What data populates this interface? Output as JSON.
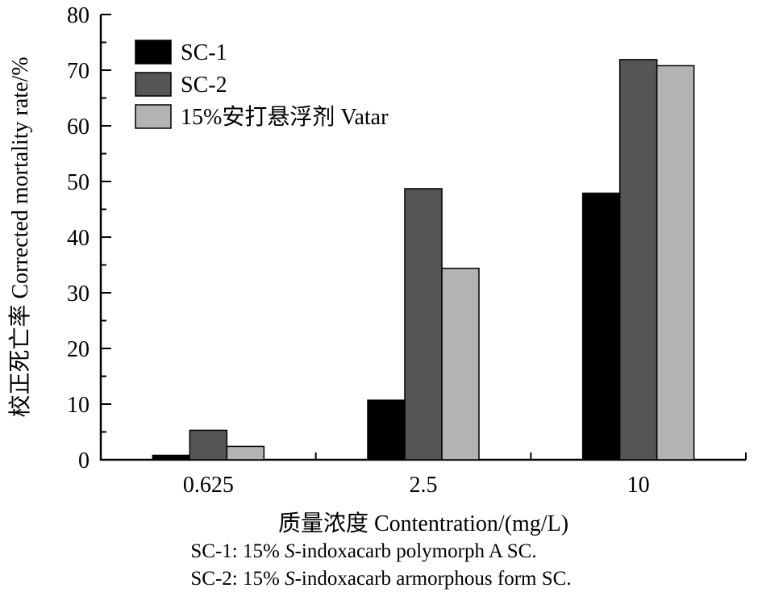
{
  "chart_data": {
    "type": "bar",
    "categories": [
      "0.625",
      "2.5",
      "10"
    ],
    "series": [
      {
        "name": "SC-1",
        "color": "#000000",
        "values": [
          0.8,
          10.7,
          47.9
        ]
      },
      {
        "name": "SC-2",
        "color": "#555555",
        "values": [
          5.3,
          48.7,
          71.9
        ]
      },
      {
        "name": "15%安打悬浮剂 Vatar",
        "color": "#b3b3b3",
        "values": [
          2.4,
          34.4,
          70.8
        ]
      }
    ],
    "title": "",
    "xlabel": "质量浓度 Contentration/(mg/L)",
    "ylabel": "校正死亡率 Corrected mortality rate/%",
    "ylim": [
      0,
      80
    ],
    "y_major_step": 10,
    "y_minor_step": 5,
    "grid": false,
    "legend_position": "top-left",
    "bar_edge_color": "#000000",
    "axis_color": "#000000"
  },
  "footnotes": {
    "line1": {
      "prefix": "SC-1: 15% ",
      "italic": "S",
      "rest": "-indoxacarb polymorph A SC."
    },
    "line2": {
      "prefix": "SC-2: 15% ",
      "italic": "S",
      "rest": "-indoxacarb armorphous form SC."
    }
  }
}
